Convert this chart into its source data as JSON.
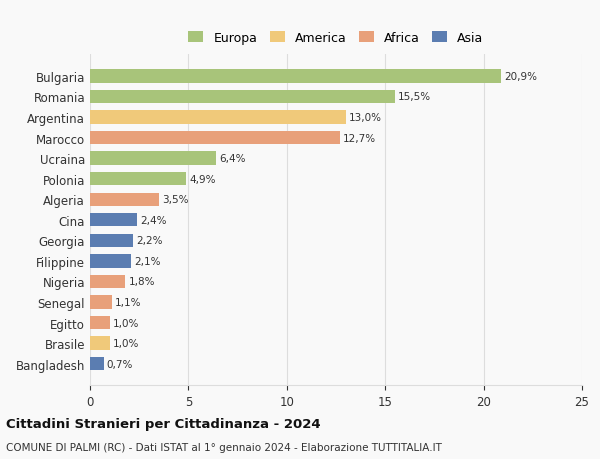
{
  "categories": [
    "Bangladesh",
    "Brasile",
    "Egitto",
    "Senegal",
    "Nigeria",
    "Filippine",
    "Georgia",
    "Cina",
    "Algeria",
    "Polonia",
    "Ucraina",
    "Marocco",
    "Argentina",
    "Romania",
    "Bulgaria"
  ],
  "values": [
    0.7,
    1.0,
    1.0,
    1.1,
    1.8,
    2.1,
    2.2,
    2.4,
    3.5,
    4.9,
    6.4,
    12.7,
    13.0,
    15.5,
    20.9
  ],
  "colors": [
    "#5b7db1",
    "#f0c97a",
    "#e8a07a",
    "#e8a07a",
    "#e8a07a",
    "#5b7db1",
    "#5b7db1",
    "#5b7db1",
    "#e8a07a",
    "#a8c47a",
    "#a8c47a",
    "#e8a07a",
    "#f0c97a",
    "#a8c47a",
    "#a8c47a"
  ],
  "labels": [
    "0,7%",
    "1,0%",
    "1,0%",
    "1,1%",
    "1,8%",
    "2,1%",
    "2,2%",
    "2,4%",
    "3,5%",
    "4,9%",
    "6,4%",
    "12,7%",
    "13,0%",
    "15,5%",
    "20,9%"
  ],
  "legend_names": [
    "Europa",
    "America",
    "Africa",
    "Asia"
  ],
  "legend_colors": [
    "#a8c47a",
    "#f0c97a",
    "#e8a07a",
    "#5b7db1"
  ],
  "xlim": [
    0,
    25
  ],
  "xticks": [
    0,
    5,
    10,
    15,
    20,
    25
  ],
  "title": "Cittadini Stranieri per Cittadinanza - 2024",
  "subtitle": "COMUNE DI PALMI (RC) - Dati ISTAT al 1° gennaio 2024 - Elaborazione TUTTITALIA.IT",
  "background_color": "#f9f9f9",
  "bar_height": 0.65,
  "grid_color": "#dddddd"
}
